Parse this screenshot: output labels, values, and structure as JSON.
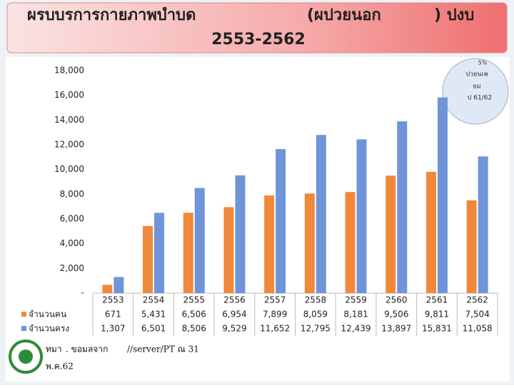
{
  "chart_data": {
    "type": "bar",
    "title_lines": [
      [
        "ผรบบรการกายภาพบำบด",
        "(ผปวยนอก",
        ") ปงบ"
      ],
      [
        "2553-2562"
      ]
    ],
    "categories": [
      "2553",
      "2554",
      "2555",
      "2556",
      "2557",
      "2558",
      "2559",
      "2560",
      "2561",
      "2562"
    ],
    "series": [
      {
        "name": "จำนวนคน",
        "color": "#f0893b",
        "values": [
          671,
          5431,
          6506,
          6954,
          7899,
          8059,
          8181,
          9506,
          9811,
          7504
        ],
        "value_labels": [
          "671",
          "5,431",
          "6,506",
          "6,954",
          "7,899",
          "8,059",
          "8,181",
          "9,506",
          "9,811",
          "7,504"
        ]
      },
      {
        "name": "จำนวนครง",
        "color": "#6f95d8",
        "values": [
          1307,
          6501,
          8506,
          9529,
          11652,
          12795,
          12439,
          13897,
          15831,
          11058
        ],
        "value_labels": [
          "1,307",
          "6,501",
          "8,506",
          "9,529",
          "11,652",
          "12,795",
          "12,439",
          "13,897",
          "15,831",
          "11,058"
        ]
      }
    ],
    "ylim": [
      0,
      18000
    ],
    "yticks": [
      {
        "value": 0,
        "label": "-"
      },
      {
        "value": 2000,
        "label": "2,000"
      },
      {
        "value": 4000,
        "label": "4,000"
      },
      {
        "value": 6000,
        "label": "6,000"
      },
      {
        "value": 8000,
        "label": "8,000"
      },
      {
        "value": 10000,
        "label": "10,000"
      },
      {
        "value": 12000,
        "label": "12,000"
      },
      {
        "value": 14000,
        "label": "14,000"
      },
      {
        "value": 16000,
        "label": "16,000"
      },
      {
        "value": 18000,
        "label": "18,000"
      }
    ],
    "annotation": [
      "5%",
      "ปวยนเพ",
      "ยม",
      "ป 61/62"
    ],
    "source": [
      "ทมา",
      ". ขอมลจาก",
      "//server/PT ณ 31",
      "พ.ค.62"
    ]
  }
}
